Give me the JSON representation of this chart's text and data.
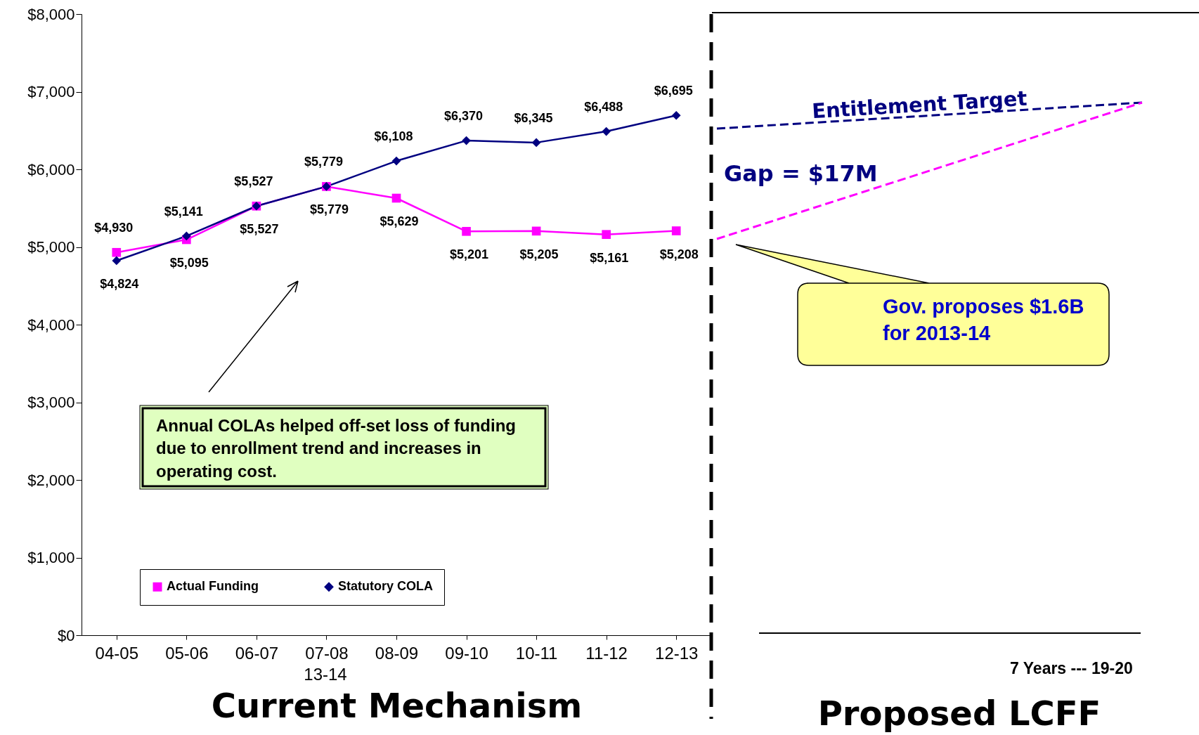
{
  "chart_data": {
    "type": "line",
    "xlabel": "Current Mechanism",
    "categories": [
      "04-05",
      "05-06",
      "06-07",
      "07-08",
      "08-09",
      "09-10",
      "10-11",
      "11-12",
      "12-13"
    ],
    "series": [
      {
        "name": "Actual Funding",
        "color": "#ff00ff",
        "marker": "square",
        "values": [
          4930,
          5095,
          5527,
          5779,
          5629,
          5201,
          5205,
          5161,
          5208
        ],
        "value_labels": [
          "$4,930",
          "$5,095",
          "$5,527",
          "$5,779",
          "$5,629",
          "$5,201",
          "$5,205",
          "$5,161",
          "$5,208"
        ]
      },
      {
        "name": "Statutory COLA",
        "color": "#000080",
        "marker": "diamond",
        "values": [
          4824,
          5141,
          5527,
          5779,
          6108,
          6370,
          6345,
          6488,
          6695
        ],
        "value_labels": [
          "$4,824",
          "$5,141",
          "$5,527",
          "$5,779",
          "$6,108",
          "$6,370",
          "$6,345",
          "$6,488",
          "$6,695"
        ]
      }
    ],
    "ylim": [
      0,
      8000
    ],
    "yticks": [
      {
        "value": 0,
        "label": "$0"
      },
      {
        "value": 1000,
        "label": "$1,000"
      },
      {
        "value": 2000,
        "label": "$2,000"
      },
      {
        "value": 3000,
        "label": "$3,000"
      },
      {
        "value": 4000,
        "label": "$4,000"
      },
      {
        "value": 5000,
        "label": "$5,000"
      },
      {
        "value": 6000,
        "label": "$6,000"
      },
      {
        "value": 7000,
        "label": "$7,000"
      },
      {
        "value": 8000,
        "label": "$8,000"
      }
    ],
    "grid": false,
    "legend": "bottom",
    "annotations": [
      "Annual COLAs helped off-set loss of funding due to enrollment trend and increases in operating cost.",
      "13-14",
      "Entitlement Target",
      "Gap = $17M",
      "Gov. proposes $1.6B for 2013-14",
      "7 Years ---  19-20",
      "Proposed LCFF"
    ]
  }
}
